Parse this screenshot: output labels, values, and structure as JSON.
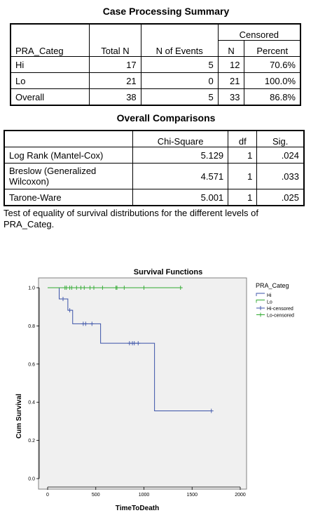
{
  "case_summary": {
    "title": "Case Processing Summary",
    "headers": {
      "category": "PRA_Categ",
      "total_n": "Total N",
      "n_events": "N of Events",
      "censored": "Censored",
      "censored_n": "N",
      "percent": "Percent"
    },
    "rows": [
      {
        "label": "Hi",
        "total_n": "17",
        "n_events": "5",
        "censored_n": "12",
        "percent": "70.6%"
      },
      {
        "label": "Lo",
        "total_n": "21",
        "n_events": "0",
        "censored_n": "21",
        "percent": "100.0%"
      },
      {
        "label": "Overall",
        "total_n": "38",
        "n_events": "5",
        "censored_n": "33",
        "percent": "86.8%"
      }
    ]
  },
  "overall_comparisons": {
    "title": "Overall Comparisons",
    "headers": {
      "chi": "Chi-Square",
      "df": "df",
      "sig": "Sig."
    },
    "rows": [
      {
        "label": "Log Rank (Mantel-Cox)",
        "chi": "5.129",
        "df": "1",
        "sig": ".024"
      },
      {
        "label": "Breslow (Generalized Wilcoxon)",
        "chi": "4.571",
        "df": "1",
        "sig": ".033"
      },
      {
        "label": "Tarone-Ware",
        "chi": "5.001",
        "df": "1",
        "sig": ".025"
      }
    ],
    "note": "Test of equality of survival distributions for the different levels of PRA_Categ."
  },
  "chart_data": {
    "type": "line",
    "title": "Survival Functions",
    "xlabel": "TimeToDeath",
    "ylabel": "Cum Survival",
    "xlim": [
      0,
      2000
    ],
    "ylim": [
      0,
      1.0
    ],
    "x_ticks": [
      "0",
      "500",
      "1000",
      "1500",
      "2000"
    ],
    "y_ticks": [
      "0.0",
      "0.2",
      "0.4",
      "0.6",
      "0.8",
      "1.0"
    ],
    "grid": false,
    "legend_title": "PRA_Categ",
    "legend_position": "right",
    "legend": [
      "Hi",
      "Lo",
      "Hi-censored",
      "Lo-censored"
    ],
    "colors": {
      "hi": "#3a52a8",
      "lo": "#2faa2f",
      "plot_bg": "#f0f0f0"
    },
    "series": [
      {
        "name": "Hi",
        "color": "#3a52a8",
        "steps": [
          [
            0,
            1.0
          ],
          [
            120,
            0.941
          ],
          [
            210,
            0.882
          ],
          [
            260,
            0.811
          ],
          [
            550,
            0.709
          ],
          [
            1110,
            0.355
          ],
          [
            1700,
            0.355
          ]
        ],
        "censored": [
          [
            160,
            0.941
          ],
          [
            230,
            0.882
          ],
          [
            370,
            0.811
          ],
          [
            395,
            0.811
          ],
          [
            460,
            0.811
          ],
          [
            850,
            0.709
          ],
          [
            880,
            0.709
          ],
          [
            900,
            0.709
          ],
          [
            940,
            0.709
          ],
          [
            1700,
            0.355
          ]
        ]
      },
      {
        "name": "Lo",
        "color": "#2faa2f",
        "steps": [
          [
            0,
            1.0
          ],
          [
            1380,
            1.0
          ]
        ],
        "censored": [
          [
            180,
            1.0
          ],
          [
            195,
            1.0
          ],
          [
            230,
            1.0
          ],
          [
            250,
            1.0
          ],
          [
            300,
            1.0
          ],
          [
            345,
            1.0
          ],
          [
            380,
            1.0
          ],
          [
            440,
            1.0
          ],
          [
            480,
            1.0
          ],
          [
            570,
            1.0
          ],
          [
            710,
            1.0
          ],
          [
            720,
            1.0
          ],
          [
            795,
            1.0
          ],
          [
            1000,
            1.0
          ],
          [
            1380,
            1.0
          ]
        ]
      }
    ]
  }
}
